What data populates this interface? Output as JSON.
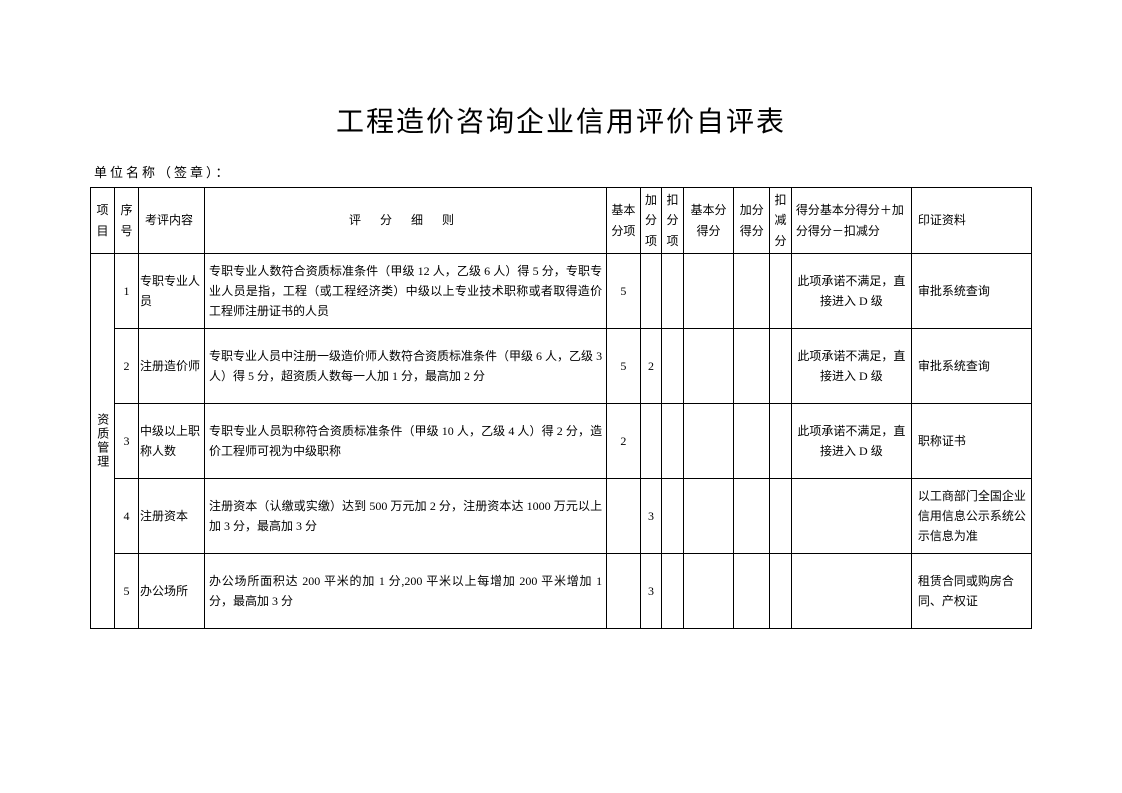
{
  "title": "工程造价咨询企业信用评价自评表",
  "subtitle": "单位名称（签章）：",
  "headers": {
    "project": "项目",
    "seq": "序号",
    "item": "考评内容",
    "detail": "评  分  细  则",
    "basic": "基本分项",
    "add": "加分项",
    "sub": "扣分项",
    "basic_score": "基本分得分",
    "add_score": "加分得分",
    "sub_score": "扣减分",
    "total": "得分基本分得分＋加分得分－扣减分",
    "evidence": "印证资料"
  },
  "group_label": "资质管理",
  "rows": [
    {
      "seq": "1",
      "item": "专职专业人员",
      "detail": "专职专业人数符合资质标准条件（甲级 12 人，乙级 6 人）得 5 分，专职专业人员是指，工程（或工程经济类）中级以上专业技术职称或者取得造价工程师注册证书的人员",
      "basic": "5",
      "add": "",
      "sub": "",
      "basic_score": "",
      "add_score": "",
      "sub_score": "",
      "total": "此项承诺不满足，直接进入 D 级",
      "evidence": "审批系统查询"
    },
    {
      "seq": "2",
      "item": "注册造价师",
      "detail": "专职专业人员中注册一级造价师人数符合资质标准条件（甲级 6 人，乙级 3 人）得 5 分，超资质人数每一人加 1 分，最高加 2 分",
      "basic": "5",
      "add": "2",
      "sub": "",
      "basic_score": "",
      "add_score": "",
      "sub_score": "",
      "total": "此项承诺不满足，直接进入 D 级",
      "evidence": "审批系统查询"
    },
    {
      "seq": "3",
      "item": "中级以上职称人数",
      "detail": "专职专业人员职称符合资质标准条件（甲级 10 人，乙级 4 人）得 2 分，造价工程师可视为中级职称",
      "basic": "2",
      "add": "",
      "sub": "",
      "basic_score": "",
      "add_score": "",
      "sub_score": "",
      "total": "此项承诺不满足，直接进入 D 级",
      "evidence": "职称证书"
    },
    {
      "seq": "4",
      "item": "注册资本",
      "detail": "注册资本（认缴或实缴）达到 500 万元加 2 分，注册资本达 1000 万元以上加 3 分，最高加 3 分",
      "basic": "",
      "add": "3",
      "sub": "",
      "basic_score": "",
      "add_score": "",
      "sub_score": "",
      "total": "",
      "evidence": "以工商部门全国企业信用信息公示系统公示信息为准"
    },
    {
      "seq": "5",
      "item": "办公场所",
      "detail": "办公场所面积达 200 平米的加 1 分,200 平米以上每增加 200 平米增加 1 分，最高加 3 分",
      "basic": "",
      "add": "3",
      "sub": "",
      "basic_score": "",
      "add_score": "",
      "sub_score": "",
      "total": "",
      "evidence": "租赁合同或购房合同、产权证"
    }
  ]
}
